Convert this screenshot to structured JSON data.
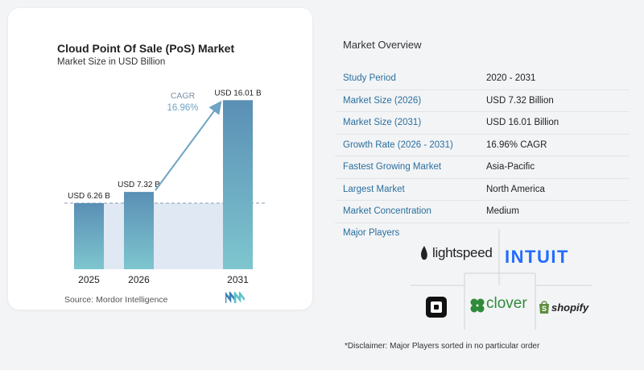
{
  "chart": {
    "title": "Cloud Point Of Sale (PoS) Market",
    "subtitle": "Market Size in USD Billion",
    "cagr_label": "CAGR",
    "cagr_value": "16.96%",
    "source": "Source:  Mordor Intelligence"
  },
  "chart_data": {
    "type": "bar",
    "categories": [
      "2025",
      "2026",
      "2031"
    ],
    "values": [
      6.26,
      7.32,
      16.01
    ],
    "data_labels": [
      "USD 6.26 B",
      "USD 7.32 B",
      "USD 16.01 B"
    ],
    "title": "Cloud Point Of Sale (PoS) Market",
    "subtitle": "Market Size in USD Billion",
    "colors": {
      "bar_top": "#5a8fb5",
      "bar_bottom": "#7ec6cf",
      "band": "#dfe8f3",
      "arrow": "#6ea3c4"
    }
  },
  "overview": {
    "title": "Market Overview",
    "rows": [
      {
        "key": "Study Period",
        "value": "2020 - 2031"
      },
      {
        "key": "Market Size (2026)",
        "value": "USD 7.32 Billion"
      },
      {
        "key": "Market Size (2031)",
        "value": "USD 16.01 Billion"
      },
      {
        "key": "Growth Rate (2026 - 2031)",
        "value": "16.96% CAGR"
      },
      {
        "key": "Fastest Growing Market",
        "value": "Asia-Pacific"
      },
      {
        "key": "Largest Market",
        "value": "North America"
      },
      {
        "key": "Market Concentration",
        "value": "Medium"
      }
    ],
    "major_players_label": "Major Players",
    "players": [
      "lightspeed",
      "INTUIT",
      "clover",
      "shopify"
    ],
    "disclaimer": "*Disclaimer: Major Players sorted in no particular order"
  }
}
